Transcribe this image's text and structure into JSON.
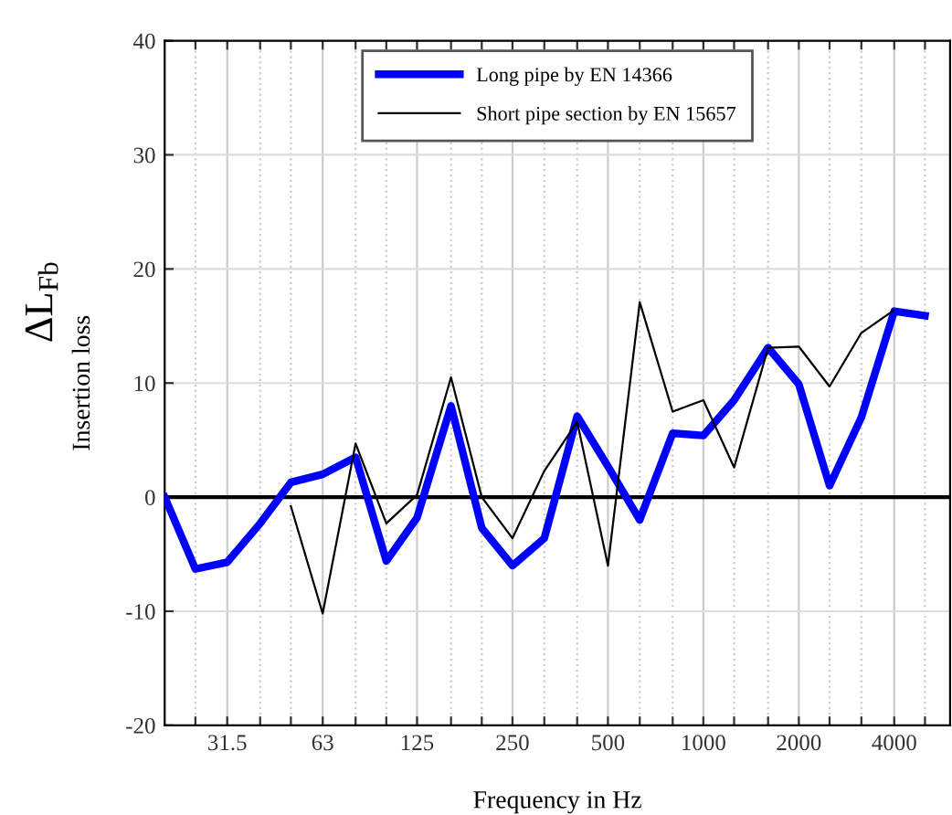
{
  "chart_data": {
    "type": "line",
    "xlabel": "Frequency in Hz",
    "ylabel": "Insertion loss",
    "annotations": [
      "ΔL$_{Fb}$"
    ],
    "x": [
      20,
      25,
      31.5,
      40,
      50,
      63,
      80,
      100,
      125,
      160,
      200,
      250,
      315,
      400,
      500,
      630,
      800,
      1000,
      1250,
      1600,
      2000,
      2500,
      3150,
      4000,
      5000
    ],
    "series": [
      {
        "name": "Long pipe by EN 14366",
        "color": "#0000ff",
        "values": [
          0,
          -6.3,
          -5.7,
          -2.3,
          1.3,
          2.0,
          3.5,
          -5.6,
          -1.8,
          8.0,
          -2.7,
          -6.0,
          -3.6,
          7.1,
          2.7,
          -2.0,
          5.6,
          5.4,
          8.5,
          13.1,
          9.9,
          1.0,
          7.0,
          16.3,
          15.9
        ]
      },
      {
        "name": "Short pipe section by EN 15657",
        "color": "#000000",
        "values": [
          null,
          null,
          null,
          null,
          -0.8,
          -10.2,
          4.7,
          -2.3,
          0.2,
          10.5,
          0,
          -3.6,
          2.3,
          6.6,
          -6.0,
          17.1,
          7.5,
          8.5,
          2.6,
          13.1,
          13.2,
          9.7,
          14.4,
          16.4,
          null
        ]
      }
    ],
    "log": "x",
    "xlim": [
      20,
      6000
    ],
    "ylim": [
      -20,
      40
    ],
    "yticks": [
      -20,
      -10,
      0,
      10,
      20,
      30,
      40
    ],
    "xticks": [
      {
        "value": 25,
        "label": null
      },
      31.5,
      {
        "value": 40,
        "label": null
      },
      {
        "value": 50,
        "label": null
      },
      63,
      {
        "value": 80,
        "label": null
      },
      {
        "value": 100,
        "label": null
      },
      125,
      {
        "value": 160,
        "label": null
      },
      {
        "value": 200,
        "label": null
      },
      250,
      {
        "value": 315,
        "label": null
      },
      {
        "value": 400,
        "label": null
      },
      500,
      {
        "value": 630,
        "label": null
      },
      {
        "value": 800,
        "label": null
      },
      1000,
      {
        "value": 1250,
        "label": null
      },
      {
        "value": 1600,
        "label": null
      },
      2000,
      {
        "value": 2500,
        "label": null
      },
      {
        "value": 3150,
        "label": null
      },
      4000,
      {
        "value": 5000,
        "label": null
      }
    ],
    "ref_lines": [
      {
        "axis": "y",
        "value": 0,
        "label": null,
        "color": "#000000"
      }
    ],
    "grid": true,
    "legend": "top",
    "marker": "none",
    "line_style": "solid"
  }
}
